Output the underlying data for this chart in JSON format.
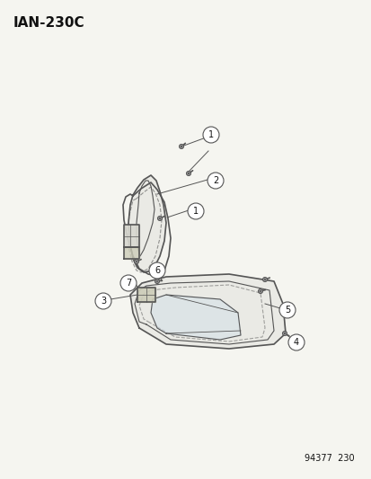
{
  "title": "IAN-230C",
  "footer": "94377  230",
  "background_color": "#f5f5f0",
  "line_color": "#555555",
  "label_color": "#111111",
  "callout_numbers": [
    1,
    2,
    3,
    4,
    5,
    6,
    7
  ],
  "figsize": [
    4.14,
    5.33
  ],
  "dpi": 100
}
